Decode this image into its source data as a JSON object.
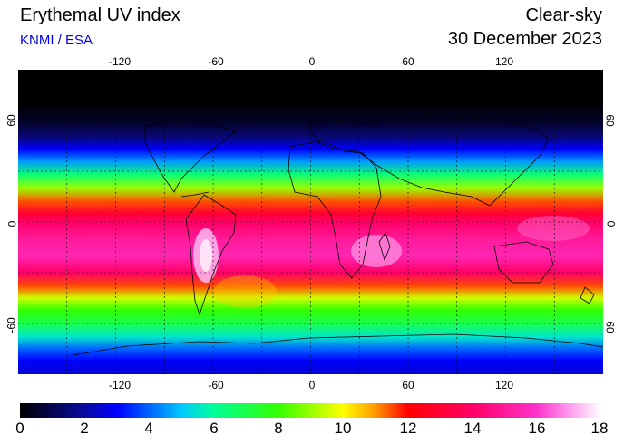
{
  "header": {
    "title": "Erythemal UV index",
    "credit": "KNMI / ESA",
    "mode": "Clear-sky",
    "date": "30 December 2023"
  },
  "map": {
    "lon_ticks_top": [
      "-120",
      "-60",
      "0",
      "60",
      "120"
    ],
    "lon_ticks_bottom": [
      "-120",
      "-60",
      "0",
      "60",
      "120"
    ],
    "lat_ticks_left": [
      "60",
      "0",
      "-60"
    ],
    "lat_ticks_right": [
      "60",
      "0",
      "-60"
    ],
    "lon_values": [
      -120,
      -60,
      0,
      60,
      120
    ],
    "lat_values": [
      60,
      0,
      -60
    ],
    "gridline_lats": [
      60,
      30,
      0,
      -30,
      -60
    ],
    "gridline_lons": [
      -150,
      -120,
      -90,
      -60,
      -30,
      0,
      30,
      60,
      90,
      120,
      150
    ],
    "lon_range": [
      -180,
      180
    ],
    "lat_range": [
      -90,
      90
    ],
    "bands": [
      {
        "lat": 90,
        "uv": 0
      },
      {
        "lat": 70,
        "uv": 0
      },
      {
        "lat": 58,
        "uv": 0.6
      },
      {
        "lat": 50,
        "uv": 1.5
      },
      {
        "lat": 43,
        "uv": 3
      },
      {
        "lat": 36,
        "uv": 4.5
      },
      {
        "lat": 28,
        "uv": 6.5
      },
      {
        "lat": 20,
        "uv": 9
      },
      {
        "lat": 12,
        "uv": 11.5
      },
      {
        "lat": 5,
        "uv": 13
      },
      {
        "lat": 0,
        "uv": 14
      },
      {
        "lat": -10,
        "uv": 15
      },
      {
        "lat": -20,
        "uv": 15.5
      },
      {
        "lat": -30,
        "uv": 14
      },
      {
        "lat": -38,
        "uv": 11.5
      },
      {
        "lat": -45,
        "uv": 9.5
      },
      {
        "lat": -52,
        "uv": 8
      },
      {
        "lat": -60,
        "uv": 7
      },
      {
        "lat": -68,
        "uv": 5.5
      },
      {
        "lat": -75,
        "uv": 4
      },
      {
        "lat": -82,
        "uv": 3
      },
      {
        "lat": -90,
        "uv": 2.5
      }
    ]
  },
  "colorbar": {
    "labels": [
      "0",
      "2",
      "4",
      "6",
      "8",
      "10",
      "12",
      "14",
      "16",
      "18"
    ],
    "min": 0,
    "max": 18,
    "stops": [
      {
        "v": 0,
        "color": "#000000"
      },
      {
        "v": 2,
        "color": "#0a0aa0"
      },
      {
        "v": 3,
        "color": "#0000ff"
      },
      {
        "v": 5,
        "color": "#00c8ff"
      },
      {
        "v": 6,
        "color": "#00ff99"
      },
      {
        "v": 8,
        "color": "#33ff00"
      },
      {
        "v": 10,
        "color": "#ffff00"
      },
      {
        "v": 11,
        "color": "#ff9900"
      },
      {
        "v": 12,
        "color": "#ff0000"
      },
      {
        "v": 14,
        "color": "#ff0066"
      },
      {
        "v": 16,
        "color": "#ff33cc"
      },
      {
        "v": 17,
        "color": "#ff99ee"
      },
      {
        "v": 18,
        "color": "#ffffff"
      }
    ]
  }
}
